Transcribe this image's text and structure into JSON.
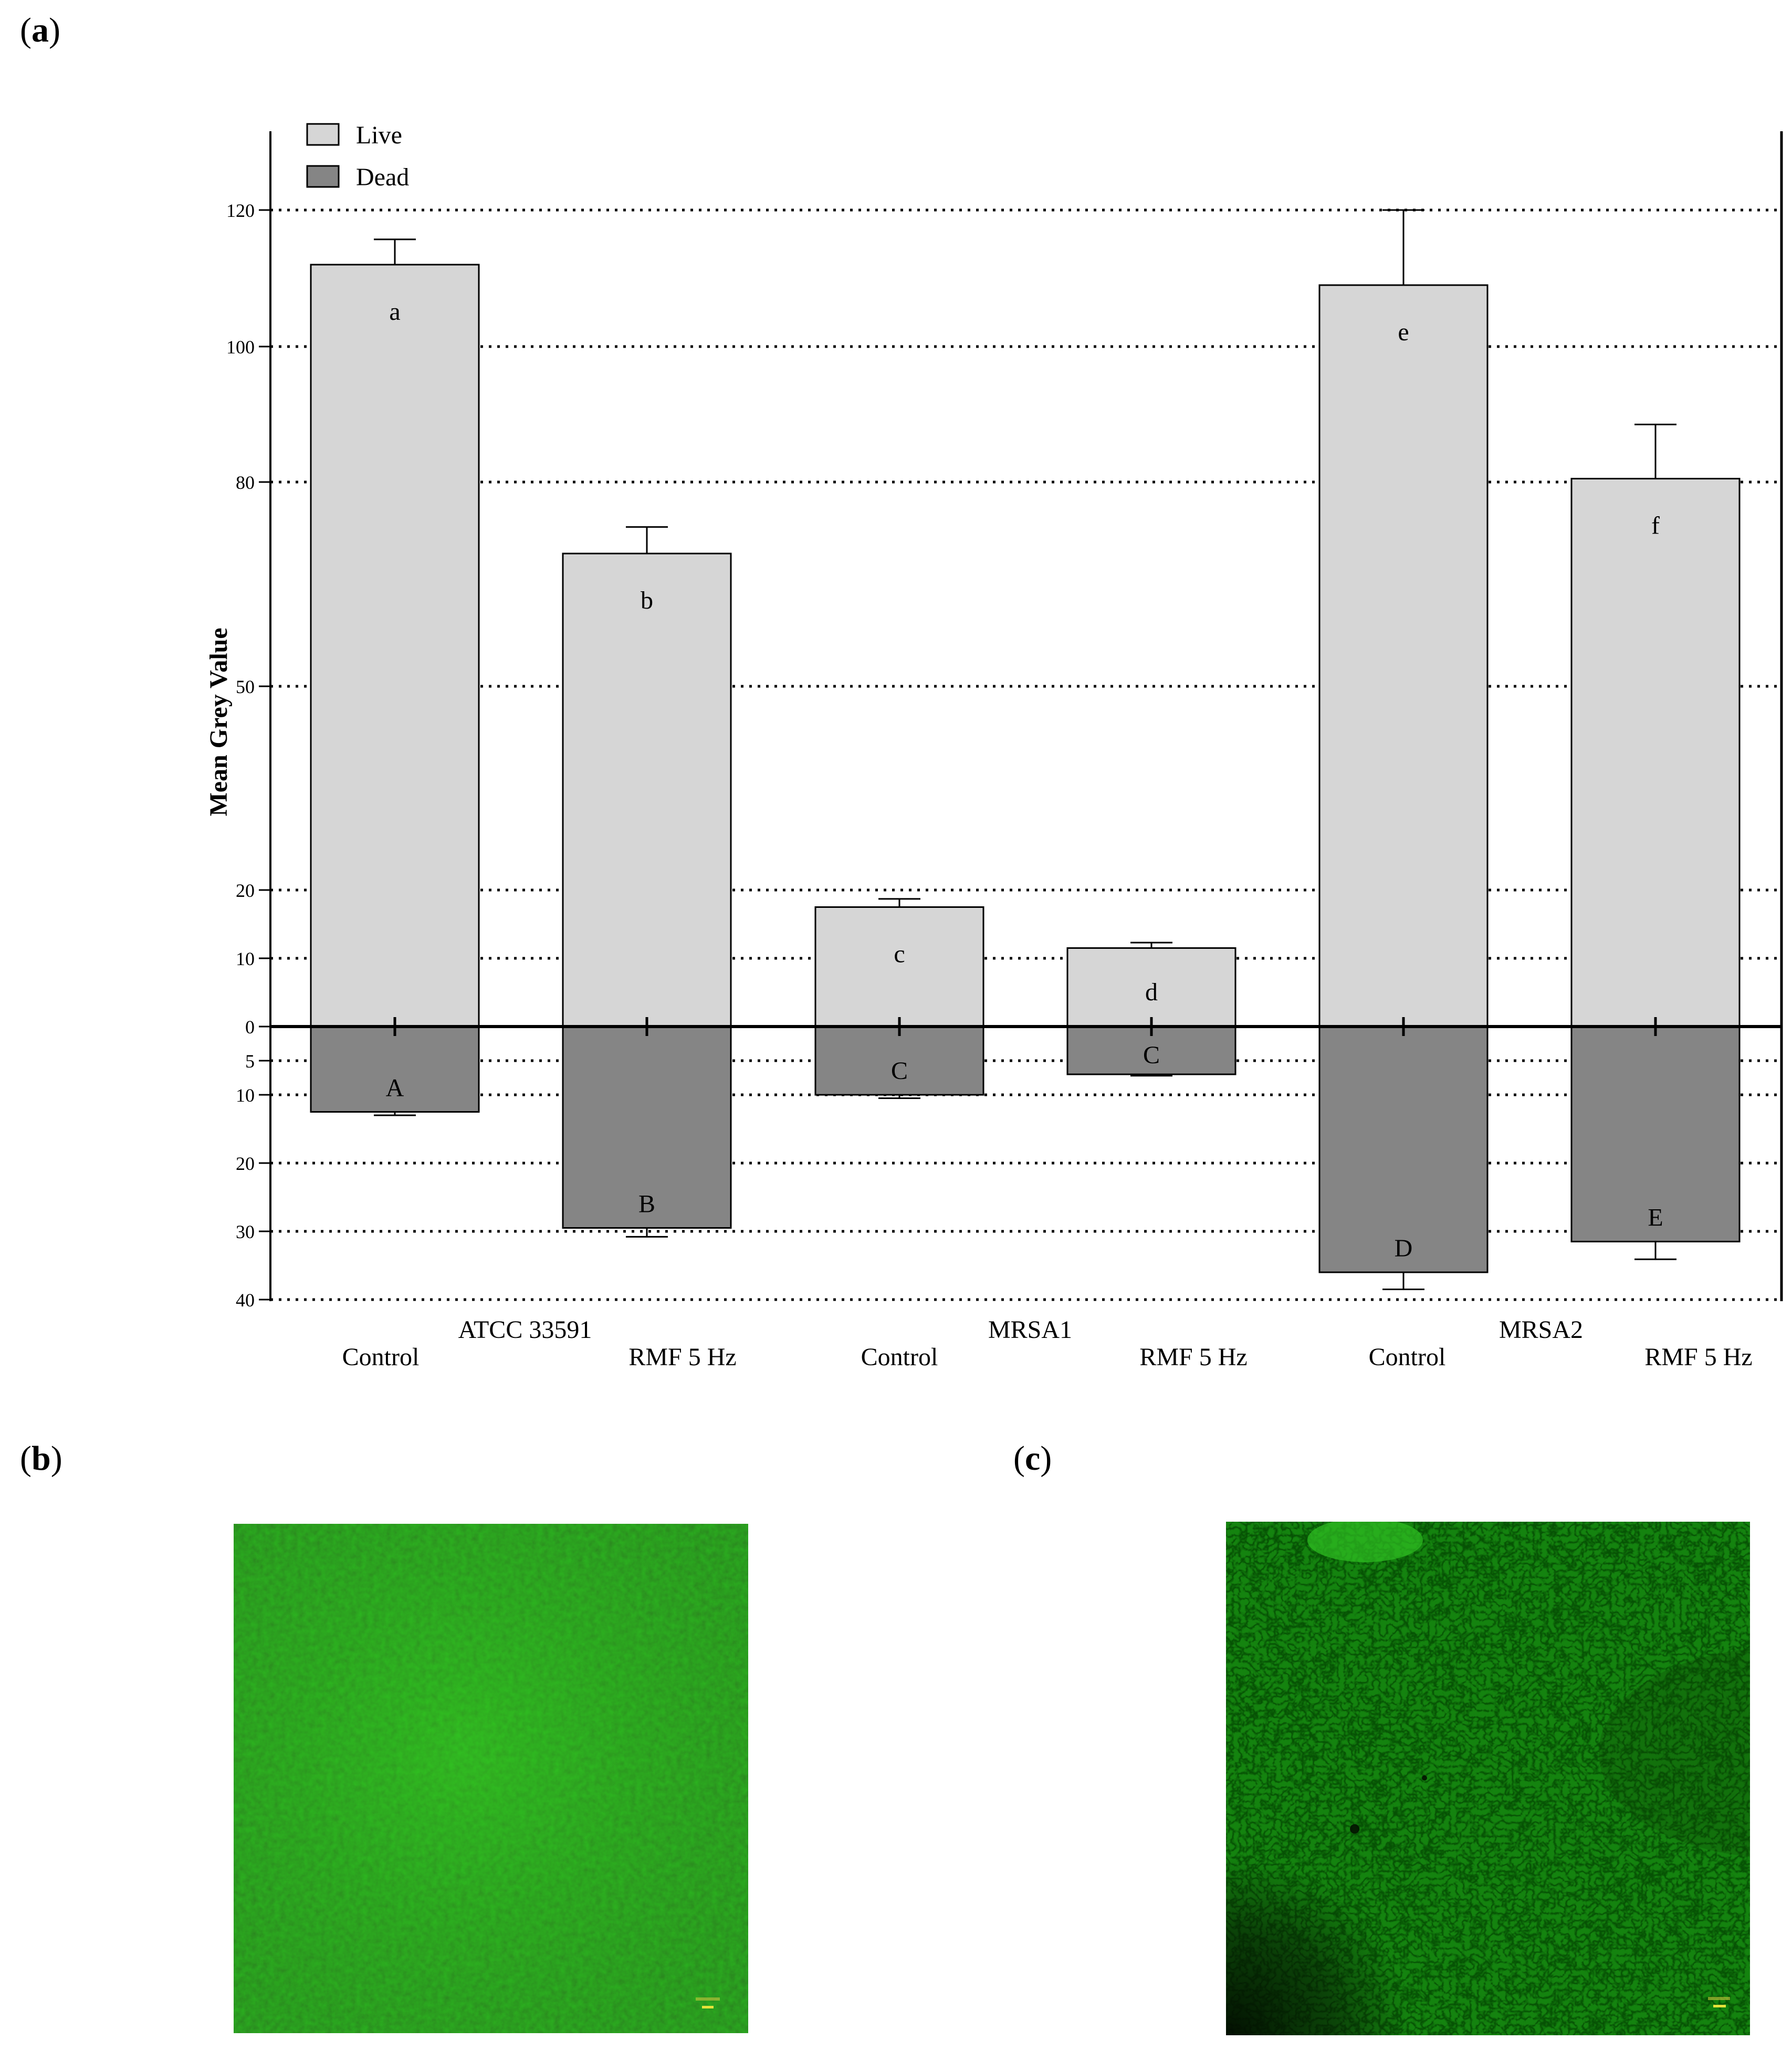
{
  "panels": {
    "a": {
      "open": "(",
      "letter": "a",
      "close": ")"
    },
    "b": {
      "open": "(",
      "letter": "b",
      "close": ")"
    },
    "c": {
      "open": "(",
      "letter": "c",
      "close": ")"
    }
  },
  "chart_data": {
    "type": "bar",
    "title": "",
    "ylabel": "Mean Grey Value",
    "xlabel": "",
    "grid": true,
    "legend_position": "top-left",
    "legend": [
      {
        "name": "Live",
        "color": "#d6d6d6"
      },
      {
        "name": "Dead",
        "color": "#858585"
      }
    ],
    "y_ticks_live": [
      "0",
      "10",
      "20",
      "50",
      "80",
      "100",
      "120"
    ],
    "y_tick_values_live": [
      0,
      10,
      20,
      50,
      80,
      100,
      120
    ],
    "y_ticks_dead": [
      "5",
      "10",
      "20",
      "30",
      "40"
    ],
    "y_tick_values_dead": [
      5,
      10,
      20,
      30,
      40
    ],
    "groups": [
      "ATCC 33591",
      "MRSA1",
      "MRSA2"
    ],
    "categories": [
      "Control",
      "RMF 5 Hz",
      "Control",
      "RMF 5 Hz",
      "Control",
      "RMF 5 Hz"
    ],
    "series": [
      {
        "name": "Live",
        "values": [
          112,
          69.5,
          17.5,
          11.5,
          109,
          80.5
        ],
        "errors": [
          3.7,
          3.9,
          1.2,
          0.8,
          11,
          8
        ],
        "letters": [
          "a",
          "b",
          "c",
          "d",
          "e",
          "f"
        ]
      },
      {
        "name": "Dead",
        "values": [
          12.5,
          29.5,
          10,
          7,
          36,
          31.5
        ],
        "errors": [
          0.5,
          1.3,
          0.5,
          0.2,
          2.5,
          2.6
        ],
        "letters": [
          "A",
          "B",
          "C",
          "C",
          "D",
          "E"
        ]
      }
    ]
  },
  "images": {
    "b": {
      "base_color": "#1f9a12",
      "texture": "dense"
    },
    "c": {
      "base_color": "#179012",
      "texture": "porous"
    }
  }
}
